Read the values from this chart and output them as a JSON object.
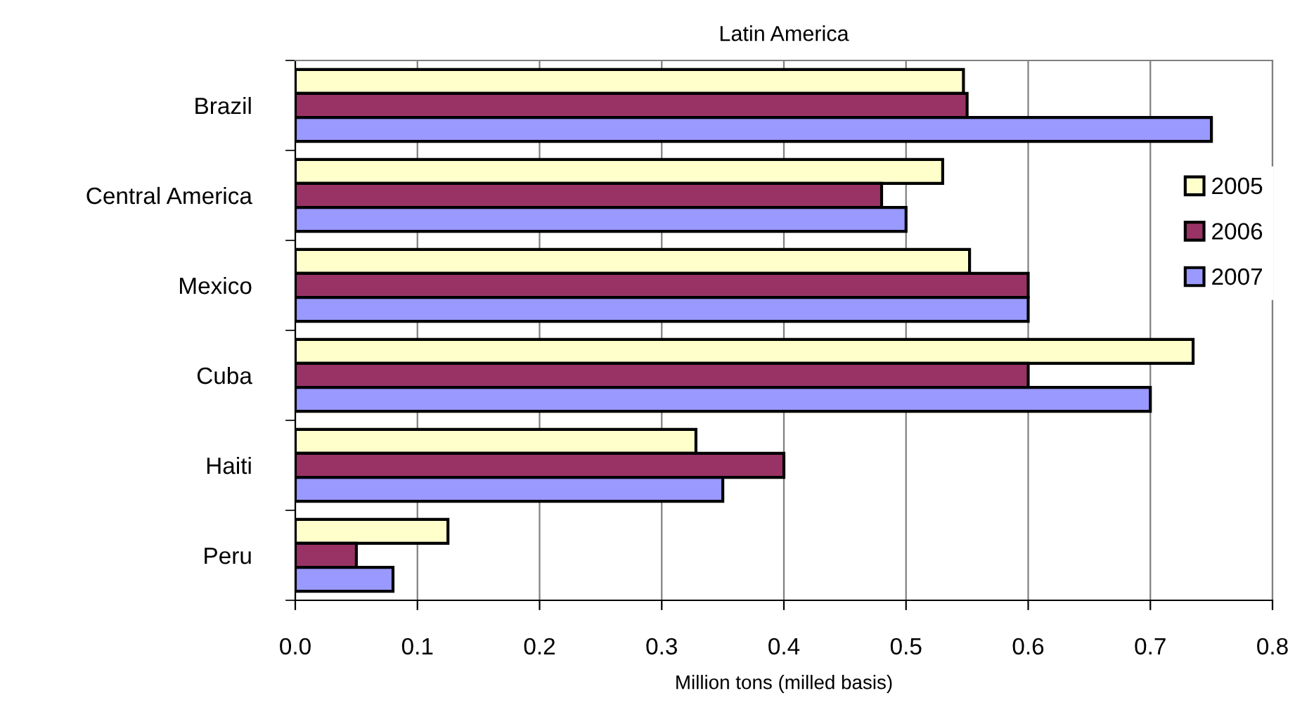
{
  "chart_data": {
    "type": "bar",
    "orientation": "horizontal",
    "title": "Latin America",
    "xlabel": "Million tons (milled basis)",
    "categories": [
      "Brazil",
      "Central America",
      "Mexico",
      "Cuba",
      "Haiti",
      "Peru"
    ],
    "series": [
      {
        "name": "2005",
        "color": "#ffffcc",
        "values": [
          0.547,
          0.53,
          0.552,
          0.735,
          0.328,
          0.125
        ]
      },
      {
        "name": "2006",
        "color": "#993366",
        "values": [
          0.55,
          0.48,
          0.6,
          0.6,
          0.4,
          0.05
        ]
      },
      {
        "name": "2007",
        "color": "#9999ff",
        "values": [
          0.75,
          0.5,
          0.6,
          0.7,
          0.35,
          0.08
        ]
      }
    ],
    "xlim": [
      0.0,
      0.8
    ],
    "xticks": [
      {
        "value": 0,
        "label": "0.0"
      },
      0.1,
      0.2,
      0.3,
      0.4,
      0.5,
      0.6,
      0.7,
      {
        "value": 0.8,
        "label": "0.8"
      }
    ],
    "grid": "x",
    "legend": "right"
  }
}
